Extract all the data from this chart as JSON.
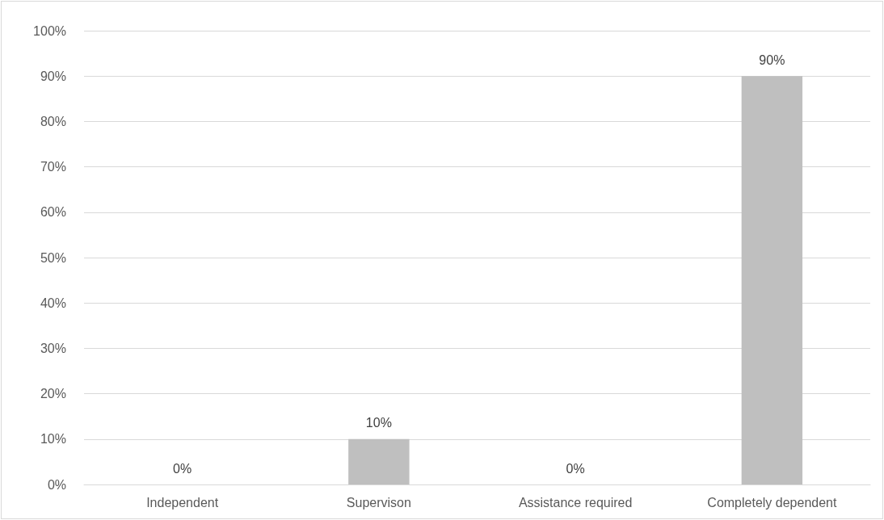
{
  "chart_data": {
    "type": "bar",
    "categories": [
      "Independent",
      "Supervison",
      "Assistance required",
      "Completely dependent"
    ],
    "values": [
      0,
      10,
      0,
      90
    ],
    "color": "#bfbfbf",
    "value_labels": [
      "0%",
      "10%",
      "0%",
      "90%"
    ],
    "ylim": [
      0,
      100
    ],
    "yticks": [
      {
        "value": 0,
        "label": "0%"
      },
      {
        "value": 10,
        "label": "10%"
      },
      {
        "value": 20,
        "label": "20%"
      },
      {
        "value": 30,
        "label": "30%"
      },
      {
        "value": 40,
        "label": "40%"
      },
      {
        "value": 50,
        "label": "50%"
      },
      {
        "value": 60,
        "label": "60%"
      },
      {
        "value": 70,
        "label": "70%"
      },
      {
        "value": 80,
        "label": "80%"
      },
      {
        "value": 90,
        "label": "90%"
      },
      {
        "value": 100,
        "label": "100%"
      }
    ],
    "grid": "y"
  }
}
